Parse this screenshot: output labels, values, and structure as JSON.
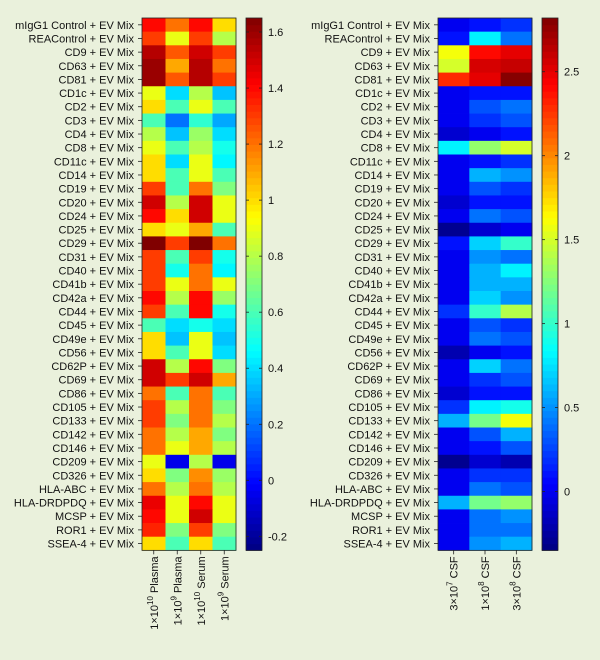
{
  "chart_data": [
    {
      "type": "heatmap",
      "title": "",
      "rows": [
        "mIgG1 Control + EV Mix",
        "REAControl + EV Mix",
        "CD9 + EV Mix",
        "CD63 + EV Mix",
        "CD81 + EV Mix",
        "CD1c + EV Mix",
        "CD2 + EV Mix",
        "CD3 + EV Mix",
        "CD4 + EV Mix",
        "CD8 + EV Mix",
        "CD11c + EV Mix",
        "CD14 + EV Mix",
        "CD19 + EV Mix",
        "CD20 + EV Mix",
        "CD24 + EV Mix",
        "CD25 + EV Mix",
        "CD29 + EV Mix",
        "CD31 + EV Mix",
        "CD40 + EV Mix",
        "CD41b + EV Mix",
        "CD42a + EV Mix",
        "CD44 + EV Mix",
        "CD45 + EV Mix",
        "CD49e + EV Mix",
        "CD56 + EV Mix",
        "CD62P + EV Mix",
        "CD69 + EV Mix",
        "CD86 + EV Mix",
        "CD105 + EV Mix",
        "CD133 + EV Mix",
        "CD142 + EV Mix",
        "CD146 + EV Mix",
        "CD209 + EV Mix",
        "CD326 + EV Mix",
        "HLA-ABC + EV Mix",
        "HLA-DRDPDQ + EV Mix",
        "MCSP + EV Mix",
        "ROR1 + EV Mix",
        "SSEA-4 + EV Mix"
      ],
      "columns": [
        {
          "base": "1×10",
          "exp": "10",
          "suffix": " Plasma"
        },
        {
          "base": "1×10",
          "exp": "9",
          "suffix": " Plasma"
        },
        {
          "base": "1×10",
          "exp": "10",
          "suffix": " Serum"
        },
        {
          "base": "1×10",
          "exp": "9",
          "suffix": " Serum"
        }
      ],
      "values": [
        [
          1.4,
          1.2,
          1.4,
          1.0
        ],
        [
          1.3,
          0.9,
          1.3,
          0.8
        ],
        [
          1.55,
          1.25,
          1.5,
          1.3
        ],
        [
          1.6,
          1.1,
          1.55,
          1.2
        ],
        [
          1.6,
          1.25,
          1.55,
          1.3
        ],
        [
          0.9,
          0.4,
          0.8,
          0.35
        ],
        [
          1.0,
          0.6,
          0.9,
          0.6
        ],
        [
          0.6,
          0.2,
          0.55,
          0.3
        ],
        [
          0.8,
          0.35,
          0.75,
          0.4
        ],
        [
          0.9,
          0.6,
          0.8,
          0.5
        ],
        [
          1.0,
          0.4,
          0.9,
          0.45
        ],
        [
          1.0,
          0.6,
          0.9,
          0.6
        ],
        [
          1.3,
          0.6,
          1.2,
          0.7
        ],
        [
          1.5,
          0.8,
          1.5,
          0.9
        ],
        [
          1.4,
          1.0,
          1.5,
          0.9
        ],
        [
          1.0,
          0.9,
          1.1,
          0.6
        ],
        [
          1.65,
          1.3,
          1.65,
          1.2
        ],
        [
          1.3,
          0.6,
          1.3,
          0.5
        ],
        [
          1.3,
          0.5,
          1.2,
          0.45
        ],
        [
          1.3,
          0.9,
          1.2,
          0.9
        ],
        [
          1.4,
          0.8,
          1.4,
          0.75
        ],
        [
          1.3,
          0.6,
          1.4,
          0.5
        ],
        [
          0.6,
          0.4,
          0.5,
          0.4
        ],
        [
          1.0,
          0.35,
          0.9,
          0.35
        ],
        [
          1.0,
          0.6,
          0.9,
          0.4
        ],
        [
          1.5,
          0.8,
          1.4,
          0.7
        ],
        [
          1.5,
          1.3,
          1.5,
          1.1
        ],
        [
          1.2,
          0.6,
          1.2,
          0.6
        ],
        [
          1.3,
          0.8,
          1.2,
          0.7
        ],
        [
          1.3,
          0.7,
          1.2,
          0.8
        ],
        [
          1.2,
          0.8,
          1.1,
          0.7
        ],
        [
          1.2,
          0.9,
          1.1,
          0.8
        ],
        [
          0.9,
          -0.05,
          0.8,
          -0.05
        ],
        [
          1.0,
          0.7,
          1.15,
          0.75
        ],
        [
          1.2,
          0.8,
          1.2,
          0.8
        ],
        [
          1.45,
          0.9,
          1.4,
          0.9
        ],
        [
          1.4,
          0.9,
          1.5,
          0.9
        ],
        [
          1.35,
          0.7,
          1.3,
          0.7
        ],
        [
          1.0,
          0.6,
          1.0,
          0.6
        ]
      ],
      "colorbar": {
        "min": -0.25,
        "max": 1.65,
        "ticks": [
          -0.2,
          0,
          0.2,
          0.4,
          0.6,
          0.8,
          1,
          1.2,
          1.4,
          1.6
        ]
      }
    },
    {
      "type": "heatmap",
      "title": "",
      "rows": [
        "mIgG1 Control + EV Mix",
        "REAControl + EV Mix",
        "CD9 + EV Mix",
        "CD63 + EV Mix",
        "CD81 + EV Mix",
        "CD1c + EV Mix",
        "CD2 + EV Mix",
        "CD3 + EV Mix",
        "CD4 + EV Mix",
        "CD8 + EV Mix",
        "CD11c + EV Mix",
        "CD14 + EV Mix",
        "CD19 + EV Mix",
        "CD20 + EV Mix",
        "CD24 + EV Mix",
        "CD25 + EV Mix",
        "CD29 + EV Mix",
        "CD31 + EV Mix",
        "CD40 + EV Mix",
        "CD41b + EV Mix",
        "CD42a + EV Mix",
        "CD44 + EV Mix",
        "CD45 + EV Mix",
        "CD49e + EV Mix",
        "CD56 + EV Mix",
        "CD62P + EV Mix",
        "CD69 + EV Mix",
        "CD86 + EV Mix",
        "CD105 + EV Mix",
        "CD133 + EV Mix",
        "CD142 + EV Mix",
        "CD146 + EV Mix",
        "CD209 + EV Mix",
        "CD326 + EV Mix",
        "HLA-ABC + EV Mix",
        "HLA-DRDPDQ + EV Mix",
        "MCSP + EV Mix",
        "ROR1 + EV Mix",
        "SSEA-4 + EV Mix"
      ],
      "columns": [
        {
          "base": "3×10",
          "exp": "7",
          "suffix": " CSF"
        },
        {
          "base": "1×10",
          "exp": "8",
          "suffix": " CSF"
        },
        {
          "base": "3×10",
          "exp": "8",
          "suffix": " CSF"
        }
      ],
      "values": [
        [
          0.0,
          0.1,
          0.2
        ],
        [
          0.1,
          0.8,
          0.4
        ],
        [
          1.6,
          2.4,
          2.5
        ],
        [
          1.5,
          2.55,
          2.6
        ],
        [
          2.3,
          2.5,
          2.8
        ],
        [
          0.0,
          0.1,
          0.1
        ],
        [
          0.0,
          0.3,
          0.4
        ],
        [
          0.0,
          0.2,
          0.3
        ],
        [
          -0.1,
          0.0,
          0.1
        ],
        [
          0.8,
          1.3,
          1.5
        ],
        [
          0.0,
          0.1,
          0.2
        ],
        [
          0.0,
          0.6,
          0.5
        ],
        [
          0.0,
          0.3,
          0.2
        ],
        [
          -0.1,
          0.1,
          0.1
        ],
        [
          0.0,
          0.4,
          0.3
        ],
        [
          -0.3,
          -0.1,
          0.0
        ],
        [
          0.1,
          0.7,
          1.0
        ],
        [
          0.0,
          0.5,
          0.4
        ],
        [
          0.0,
          0.6,
          0.8
        ],
        [
          0.0,
          0.6,
          0.6
        ],
        [
          0.0,
          0.7,
          0.5
        ],
        [
          0.2,
          1.0,
          1.4
        ],
        [
          0.0,
          0.3,
          0.2
        ],
        [
          0.0,
          0.4,
          0.3
        ],
        [
          -0.2,
          0.0,
          0.1
        ],
        [
          0.0,
          0.7,
          0.4
        ],
        [
          0.0,
          0.2,
          0.3
        ],
        [
          -0.1,
          0.1,
          0.1
        ],
        [
          0.2,
          0.8,
          0.9
        ],
        [
          0.6,
          1.2,
          1.6
        ],
        [
          0.0,
          0.3,
          0.6
        ],
        [
          0.0,
          0.1,
          0.3
        ],
        [
          -0.3,
          -0.1,
          -0.2
        ],
        [
          0.0,
          0.2,
          0.2
        ],
        [
          0.0,
          0.4,
          0.3
        ],
        [
          0.6,
          1.2,
          1.3
        ],
        [
          0.0,
          0.4,
          0.5
        ],
        [
          0.0,
          0.4,
          0.4
        ],
        [
          0.0,
          0.5,
          0.6
        ]
      ],
      "colorbar": {
        "min": -0.35,
        "max": 2.82,
        "ticks": [
          0,
          0.5,
          1,
          1.5,
          2,
          2.5
        ]
      }
    }
  ]
}
